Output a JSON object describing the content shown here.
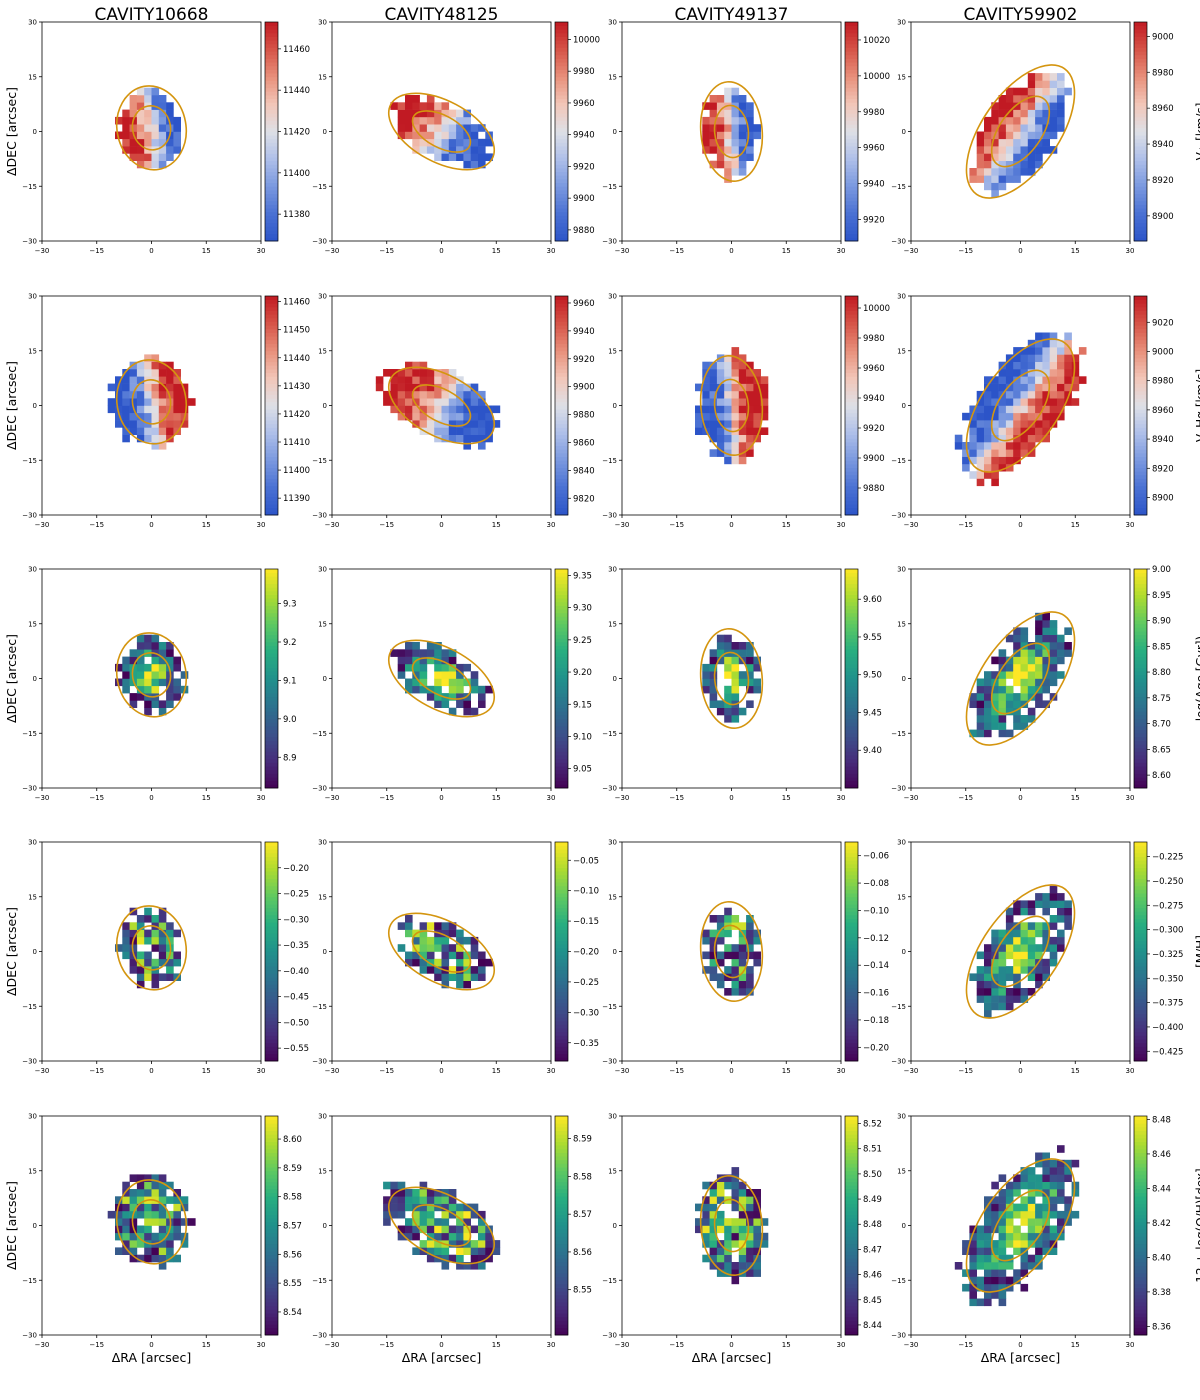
{
  "figure": {
    "column_titles": [
      "CAVITY10668",
      "CAVITY48125",
      "CAVITY49137",
      "CAVITY59902"
    ],
    "xlabel": "ΔRA [arcsec]",
    "ylabel": "ΔDEC [arcsec]",
    "axis_ticks": [
      "−30",
      "−15",
      "0",
      "15",
      "30"
    ],
    "contour_color": "#d4950f"
  },
  "rows": [
    {
      "quantity": "V⋆ [km/s]",
      "colormap": "RdBu_r",
      "colorbars": [
        {
          "range": [
            11367,
            11473
          ],
          "ticks": [
            "11380",
            "11400",
            "11420",
            "11440",
            "11460"
          ]
        },
        {
          "range": [
            9873,
            10011
          ],
          "ticks": [
            "9880",
            "9900",
            "9920",
            "9940",
            "9960",
            "9980",
            "10000"
          ]
        },
        {
          "range": [
            9908,
            10030
          ],
          "ticks": [
            "9920",
            "9940",
            "9960",
            "9980",
            "10000",
            "10020"
          ]
        },
        {
          "range": [
            8886,
            9008
          ],
          "ticks": [
            "8900",
            "8920",
            "8940",
            "8960",
            "8980",
            "9000"
          ]
        }
      ]
    },
    {
      "quantity": "V_Hα [km/s]",
      "colormap": "RdBu_r",
      "colorbars": [
        {
          "range": [
            11384,
            11462
          ],
          "ticks": [
            "11390",
            "11400",
            "11410",
            "11420",
            "11430",
            "11440",
            "11450",
            "11460"
          ]
        },
        {
          "range": [
            9808,
            9965
          ],
          "ticks": [
            "9820",
            "9840",
            "9860",
            "9880",
            "9900",
            "9920",
            "9940",
            "9960"
          ]
        },
        {
          "range": [
            9862,
            10008
          ],
          "ticks": [
            "9880",
            "9900",
            "9920",
            "9940",
            "9960",
            "9980",
            "10000"
          ]
        },
        {
          "range": [
            8888,
            9038
          ],
          "ticks": [
            "8900",
            "8920",
            "8940",
            "8960",
            "8980",
            "9000",
            "9020"
          ]
        }
      ]
    },
    {
      "quantity": "log(Age [Gyr])",
      "colormap": "viridis",
      "colorbars": [
        {
          "range": [
            8.82,
            9.39
          ],
          "ticks": [
            "8.9",
            "9.0",
            "9.1",
            "9.2",
            "9.3"
          ]
        },
        {
          "range": [
            9.02,
            9.36
          ],
          "ticks": [
            "9.05",
            "9.10",
            "9.15",
            "9.20",
            "9.25",
            "9.30",
            "9.35"
          ]
        },
        {
          "range": [
            9.35,
            9.64
          ],
          "ticks": [
            "9.40",
            "9.45",
            "9.50",
            "9.55",
            "9.60"
          ]
        },
        {
          "range": [
            8.575,
            9.0
          ],
          "ticks": [
            "8.60",
            "8.65",
            "8.70",
            "8.75",
            "8.80",
            "8.85",
            "8.90",
            "8.95",
            "9.00"
          ]
        }
      ]
    },
    {
      "quantity": "[M/H]",
      "colormap": "viridis",
      "colorbars": [
        {
          "range": [
            -0.575,
            -0.15
          ],
          "ticks": [
            "−0.55",
            "−0.50",
            "−0.45",
            "−0.40",
            "−0.35",
            "−0.30",
            "−0.25",
            "−0.20"
          ]
        },
        {
          "range": [
            -0.38,
            -0.02
          ],
          "ticks": [
            "−0.35",
            "−0.30",
            "−0.25",
            "−0.20",
            "−0.15",
            "−0.10",
            "−0.05"
          ]
        },
        {
          "range": [
            -0.21,
            -0.05
          ],
          "ticks": [
            "−0.20",
            "−0.18",
            "−0.16",
            "−0.14",
            "−0.12",
            "−0.10",
            "−0.08",
            "−0.06"
          ]
        },
        {
          "range": [
            -0.435,
            -0.21
          ],
          "ticks": [
            "−0.425",
            "−0.400",
            "−0.375",
            "−0.350",
            "−0.325",
            "−0.300",
            "−0.275",
            "−0.250",
            "−0.225"
          ]
        }
      ]
    },
    {
      "quantity": "12 + log(O/H)[dex]",
      "colormap": "viridis",
      "colorbars": [
        {
          "range": [
            8.532,
            8.608
          ],
          "ticks": [
            "8.54",
            "8.55",
            "8.56",
            "8.57",
            "8.58",
            "8.59",
            "8.60"
          ]
        },
        {
          "range": [
            8.538,
            8.596
          ],
          "ticks": [
            "8.55",
            "8.56",
            "8.57",
            "8.58",
            "8.59"
          ]
        },
        {
          "range": [
            8.436,
            8.523
          ],
          "ticks": [
            "8.44",
            "8.45",
            "8.46",
            "8.47",
            "8.48",
            "8.49",
            "8.50",
            "8.51",
            "8.52"
          ]
        },
        {
          "range": [
            8.355,
            8.482
          ],
          "ticks": [
            "8.36",
            "8.38",
            "8.40",
            "8.42",
            "8.44",
            "8.46",
            "8.48"
          ]
        }
      ]
    }
  ],
  "chart_data": {
    "type": "heatmap",
    "grid": "4 columns × 5 rows of 2D maps",
    "x_range": [
      -30,
      30
    ],
    "y_range": [
      -30,
      30
    ],
    "x_ticks": [
      -30,
      -15,
      0,
      15,
      30
    ],
    "y_ticks": [
      -30,
      -15,
      0,
      15,
      30
    ],
    "galaxies": [
      {
        "name": "CAVITY10668",
        "center": [
          0,
          1
        ],
        "semi_axes": [
          9,
          11
        ],
        "pa_deg": 10
      },
      {
        "name": "CAVITY48125",
        "center": [
          0,
          0
        ],
        "semi_axes": [
          15,
          8
        ],
        "pa_deg": -28
      },
      {
        "name": "CAVITY49137",
        "center": [
          0,
          0
        ],
        "semi_axes": [
          8,
          13
        ],
        "pa_deg": 5
      },
      {
        "name": "CAVITY59902",
        "center": [
          0,
          0
        ],
        "semi_axes": [
          10,
          20
        ],
        "pa_deg": -35
      }
    ]
  }
}
